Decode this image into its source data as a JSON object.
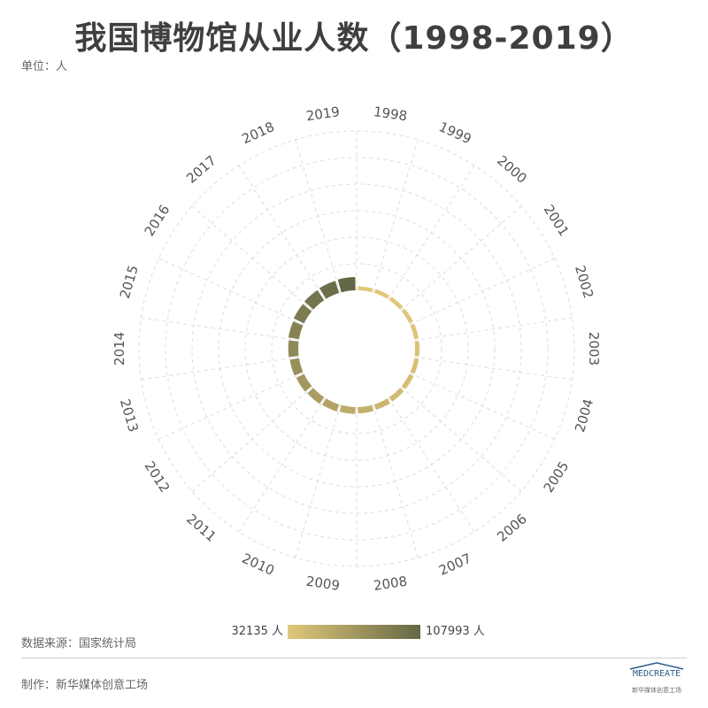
{
  "title": "我国博物馆从业人数（1998-2019）",
  "unit": "单位：人",
  "source": "数据来源：国家统计局",
  "maker": "制作：新华媒体创意工场",
  "logo": {
    "text": "MEDCREATE",
    "subtext": "新华媒体创意工场"
  },
  "legend": {
    "min_label": "32135 人",
    "max_label": "107993 人"
  },
  "colors": {
    "low": "#e2c87a",
    "high": "#636845",
    "grid": "#dcdcdc",
    "label": "#555555"
  },
  "chart_data": {
    "type": "radial-bar",
    "title": "我国博物馆从业人数（1998-2019）",
    "unit": "人",
    "categories": [
      "1998",
      "1999",
      "2000",
      "2001",
      "2002",
      "2003",
      "2004",
      "2005",
      "2006",
      "2007",
      "2008",
      "2009",
      "2010",
      "2011",
      "2012",
      "2013",
      "2014",
      "2015",
      "2016",
      "2017",
      "2018",
      "2019"
    ],
    "values": [
      32135,
      33000,
      33700,
      34300,
      35300,
      36500,
      38200,
      40100,
      42700,
      46400,
      50800,
      55500,
      60800,
      65600,
      70800,
      76200,
      81400,
      87300,
      92900,
      97900,
      103000,
      107993
    ],
    "color_range": [
      32135,
      107993
    ],
    "direction": "clockwise, starting at top"
  }
}
